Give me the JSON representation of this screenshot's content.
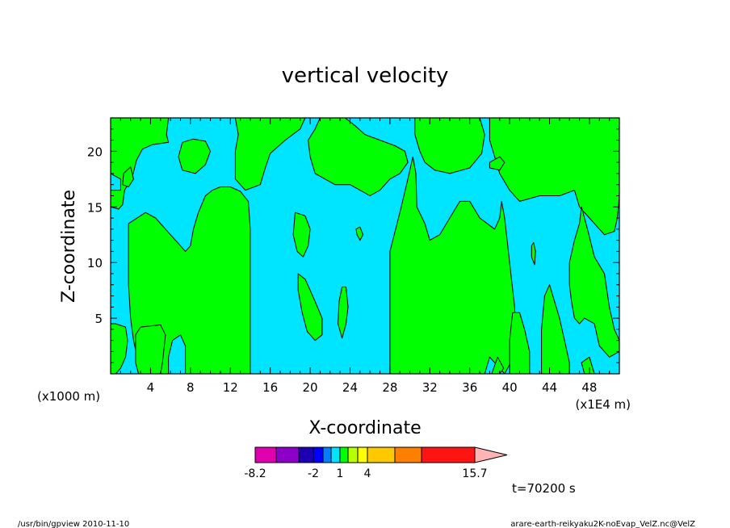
{
  "chart_data": {
    "type": "contour",
    "title": "vertical velocity",
    "xlabel": "X-coordinate",
    "ylabel": "Z-coordinate",
    "x_unit_left": "(x1000 m)",
    "x_unit_right": "(x1E4 m)",
    "xlim": [
      0,
      51
    ],
    "ylim": [
      0,
      23
    ],
    "x_ticks": [
      4,
      8,
      12,
      16,
      20,
      24,
      28,
      32,
      36,
      40,
      44,
      48
    ],
    "y_ticks": [
      5,
      10,
      15,
      20
    ],
    "background_color": "#00e5ff",
    "positive_color": "#00ff00",
    "contour_line_color": "#000000",
    "regions": [
      {
        "polygon": [
          [
            0,
            23
          ],
          [
            5.8,
            23
          ],
          [
            5.6,
            21.5
          ],
          [
            5.8,
            20.8
          ],
          [
            4.2,
            20.6
          ],
          [
            3.2,
            20.2
          ],
          [
            2.6,
            19.2
          ],
          [
            2.2,
            17.8
          ],
          [
            1.4,
            16.5
          ],
          [
            1.2,
            15.2
          ],
          [
            0.8,
            14.8
          ],
          [
            0,
            15
          ],
          [
            0,
            16.5
          ],
          [
            1,
            16.5
          ],
          [
            1,
            17.5
          ],
          [
            0,
            18
          ],
          [
            0,
            23
          ]
        ]
      },
      {
        "polygon": [
          [
            12.5,
            23
          ],
          [
            19.5,
            23
          ],
          [
            19,
            22
          ],
          [
            17.5,
            21
          ],
          [
            16,
            19.8
          ],
          [
            15.5,
            18.5
          ],
          [
            15,
            17
          ],
          [
            13.5,
            16.5
          ],
          [
            12.5,
            17.5
          ],
          [
            12.5,
            20
          ],
          [
            12.8,
            21.5
          ],
          [
            12.5,
            23
          ]
        ]
      },
      {
        "polygon": [
          [
            21,
            23
          ],
          [
            23.5,
            23
          ],
          [
            24.5,
            22.3
          ],
          [
            25.5,
            21.5
          ],
          [
            27,
            21
          ],
          [
            28.5,
            20.5
          ],
          [
            29.5,
            20
          ],
          [
            29.8,
            19
          ],
          [
            29,
            18
          ],
          [
            28,
            17.5
          ],
          [
            27,
            16.5
          ],
          [
            26,
            16
          ],
          [
            25,
            16.5
          ],
          [
            24,
            17
          ],
          [
            22.5,
            17
          ],
          [
            21.5,
            17.5
          ],
          [
            20.5,
            18
          ],
          [
            20,
            19.5
          ],
          [
            19.8,
            21
          ],
          [
            20.5,
            22
          ],
          [
            21,
            23
          ]
        ]
      },
      {
        "polygon": [
          [
            30.5,
            23
          ],
          [
            37,
            23
          ],
          [
            37.5,
            21.5
          ],
          [
            37.2,
            19.8
          ],
          [
            36,
            18.5
          ],
          [
            34,
            18
          ],
          [
            32.5,
            18.3
          ],
          [
            31.5,
            19
          ],
          [
            31,
            20
          ],
          [
            30.5,
            21.5
          ],
          [
            30.5,
            23
          ]
        ]
      },
      {
        "polygon": [
          [
            38,
            23
          ],
          [
            51,
            23
          ],
          [
            51,
            16
          ],
          [
            50.8,
            14
          ],
          [
            50.5,
            12.8
          ],
          [
            49.5,
            12.5
          ],
          [
            48,
            14
          ],
          [
            47,
            15
          ],
          [
            46.5,
            16.5
          ],
          [
            45,
            16
          ],
          [
            43,
            16
          ],
          [
            41,
            15.5
          ],
          [
            40,
            16.5
          ],
          [
            39,
            18
          ],
          [
            38.5,
            19.5
          ],
          [
            38,
            21
          ],
          [
            38,
            23
          ]
        ]
      },
      {
        "polygon": [
          [
            38,
            19
          ],
          [
            39,
            19.5
          ],
          [
            39.5,
            19
          ],
          [
            39,
            18.3
          ],
          [
            38,
            18.5
          ]
        ]
      },
      {
        "polygon": [
          [
            7.2,
            20.8
          ],
          [
            8.3,
            21.1
          ],
          [
            9.5,
            20.9
          ],
          [
            10,
            20
          ],
          [
            9.5,
            18.8
          ],
          [
            8.5,
            18
          ],
          [
            7.2,
            18.3
          ],
          [
            6.8,
            19.5
          ],
          [
            7.2,
            20.8
          ]
        ]
      },
      {
        "polygon": [
          [
            1.3,
            18
          ],
          [
            2,
            18.6
          ],
          [
            2.3,
            17.5
          ],
          [
            1.8,
            16.8
          ],
          [
            1.2,
            17
          ]
        ]
      },
      {
        "polygon": [
          [
            18.5,
            14.5
          ],
          [
            19.5,
            14.2
          ],
          [
            20,
            13
          ],
          [
            19.8,
            11.5
          ],
          [
            19.3,
            10.5
          ],
          [
            18.7,
            11
          ],
          [
            18.3,
            12.5
          ],
          [
            18.5,
            14.5
          ]
        ]
      },
      {
        "polygon": [
          [
            24.6,
            13
          ],
          [
            25,
            13.2
          ],
          [
            25.3,
            12.5
          ],
          [
            25,
            12
          ],
          [
            24.7,
            12.5
          ]
        ]
      },
      {
        "polygon": [
          [
            1.8,
            13.5
          ],
          [
            3.5,
            14.5
          ],
          [
            4.5,
            14
          ],
          [
            5.5,
            13
          ],
          [
            6.5,
            12
          ],
          [
            7.5,
            11
          ],
          [
            8,
            11.5
          ],
          [
            8.3,
            13
          ],
          [
            8.8,
            14.5
          ],
          [
            9.5,
            16
          ],
          [
            10.2,
            16.5
          ],
          [
            11,
            16.8
          ],
          [
            12,
            16.8
          ],
          [
            13,
            16.4
          ],
          [
            13.8,
            15.5
          ],
          [
            14,
            13
          ],
          [
            14,
            0
          ],
          [
            7.5,
            0
          ],
          [
            7.5,
            2.5
          ],
          [
            7,
            3.5
          ],
          [
            6.2,
            3
          ],
          [
            5.8,
            1.5
          ],
          [
            5.8,
            0
          ],
          [
            3,
            0
          ],
          [
            2.3,
            3
          ],
          [
            2,
            5
          ],
          [
            1.8,
            8
          ],
          [
            1.8,
            10.5
          ],
          [
            1.8,
            13.5
          ]
        ]
      },
      {
        "polygon": [
          [
            5.2,
            1
          ],
          [
            5.5,
            3.5
          ],
          [
            5,
            4.4
          ],
          [
            4,
            4.3
          ],
          [
            3,
            4.2
          ],
          [
            2.5,
            3.5
          ],
          [
            2.5,
            1
          ],
          [
            2.8,
            0
          ],
          [
            5,
            0
          ],
          [
            5.2,
            1
          ]
        ]
      },
      {
        "polygon": [
          [
            0,
            4.5
          ],
          [
            0.5,
            4.5
          ],
          [
            1.5,
            4.2
          ],
          [
            1.7,
            3
          ],
          [
            1.5,
            1.5
          ],
          [
            1,
            0.5
          ],
          [
            0.5,
            0
          ],
          [
            0,
            0
          ],
          [
            0,
            4.5
          ]
        ]
      },
      {
        "polygon": [
          [
            18.8,
            9
          ],
          [
            19.5,
            8.5
          ],
          [
            20,
            7.5
          ],
          [
            20.5,
            6.5
          ],
          [
            21.2,
            5
          ],
          [
            21.2,
            3.5
          ],
          [
            20.5,
            3
          ],
          [
            19.7,
            3.8
          ],
          [
            19.2,
            5.5
          ],
          [
            18.8,
            7.5
          ],
          [
            18.8,
            9
          ]
        ]
      },
      {
        "polygon": [
          [
            23.2,
            7.8
          ],
          [
            23.6,
            7.8
          ],
          [
            23.8,
            6
          ],
          [
            23.6,
            4.5
          ],
          [
            23.2,
            3.2
          ],
          [
            22.8,
            4.5
          ],
          [
            22.9,
            6.5
          ],
          [
            23.2,
            7.8
          ]
        ]
      },
      {
        "polygon": [
          [
            28,
            11
          ],
          [
            29,
            14.5
          ],
          [
            29.8,
            17.5
          ],
          [
            30.3,
            19.5
          ],
          [
            30.6,
            18
          ],
          [
            30.7,
            15
          ],
          [
            31.5,
            13.5
          ],
          [
            32,
            12
          ],
          [
            33,
            12.5
          ],
          [
            34,
            14
          ],
          [
            35,
            15.5
          ],
          [
            36,
            15.5
          ],
          [
            37,
            14
          ],
          [
            38.5,
            13
          ],
          [
            39,
            14
          ],
          [
            39.2,
            15.5
          ],
          [
            39.5,
            14
          ],
          [
            40,
            10
          ],
          [
            40.5,
            6
          ],
          [
            40.7,
            2
          ],
          [
            39.5,
            0
          ],
          [
            38,
            1.5
          ],
          [
            37.5,
            0
          ],
          [
            28,
            0
          ],
          [
            28,
            11
          ]
        ]
      },
      {
        "polygon": [
          [
            38.2,
            0
          ],
          [
            38.8,
            1.5
          ],
          [
            39.4,
            0.5
          ],
          [
            39,
            0
          ]
        ]
      },
      {
        "polygon": [
          [
            40,
            0
          ],
          [
            42,
            0
          ],
          [
            42,
            2
          ],
          [
            41.5,
            4
          ],
          [
            41,
            5.5
          ],
          [
            40.3,
            5.5
          ],
          [
            40,
            3
          ],
          [
            40,
            0
          ]
        ]
      },
      {
        "polygon": [
          [
            43.2,
            0
          ],
          [
            46,
            0
          ],
          [
            46,
            1
          ],
          [
            45.5,
            3
          ],
          [
            45,
            5
          ],
          [
            44.5,
            6.5
          ],
          [
            44,
            8
          ],
          [
            43.5,
            7
          ],
          [
            43.2,
            4
          ],
          [
            43.2,
            0
          ]
        ]
      },
      {
        "polygon": [
          [
            46,
            10
          ],
          [
            46.5,
            12
          ],
          [
            47,
            13.5
          ],
          [
            47.2,
            15
          ],
          [
            47.8,
            13
          ],
          [
            48.5,
            10.5
          ],
          [
            49.5,
            9
          ],
          [
            50,
            6
          ],
          [
            50.5,
            4
          ],
          [
            51,
            3
          ],
          [
            51,
            2
          ],
          [
            50,
            1.5
          ],
          [
            49,
            2.5
          ],
          [
            48.5,
            4.5
          ],
          [
            47.5,
            5
          ],
          [
            47,
            4.5
          ],
          [
            46.5,
            5
          ],
          [
            46.2,
            6.5
          ],
          [
            46,
            8
          ],
          [
            46,
            10
          ]
        ]
      },
      {
        "polygon": [
          [
            47.2,
            1
          ],
          [
            48,
            1.5
          ],
          [
            48.5,
            0
          ],
          [
            47.5,
            0
          ],
          [
            47.2,
            1
          ]
        ]
      },
      {
        "polygon": [
          [
            42.2,
            11.5
          ],
          [
            42.4,
            11.8
          ],
          [
            42.6,
            11
          ],
          [
            42.5,
            9.8
          ],
          [
            42.2,
            10.5
          ]
        ]
      }
    ],
    "legend": {
      "title": "",
      "tick_labels": [
        "-8.2",
        "-2",
        "1",
        "4",
        "15.7"
      ],
      "colors": [
        "#e000b0",
        "#8c00c8",
        "#1e00b4",
        "#0000ff",
        "#0080ff",
        "#00e5ff",
        "#00ff00",
        "#b8ff00",
        "#ffff00",
        "#ffc800",
        "#ff8000",
        "#ff1414",
        "#ff7878",
        "#ffb4b4"
      ]
    },
    "time_label": "t=70200 s"
  },
  "footer": {
    "left": "/usr/bin/gpview   2010-11-10",
    "right": "arare-earth-reikyaku2K-noEvap_VelZ.nc@VelZ"
  }
}
